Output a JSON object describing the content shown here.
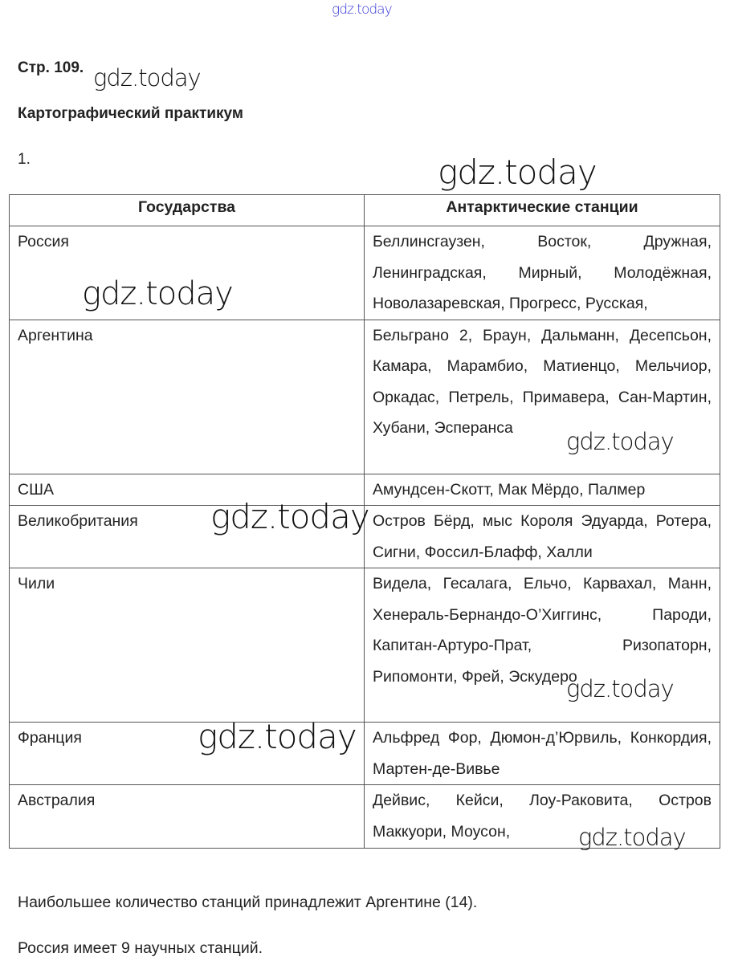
{
  "watermark": "gdz.today",
  "header": {
    "page": "Стр. 109.",
    "title": "Картографический практикум",
    "number": "1."
  },
  "table": {
    "headers": [
      "Государства",
      "Антарктические станции"
    ],
    "rows": [
      {
        "country": "Россия",
        "stations": "Беллинсгаузен, Восток, Дружная, Ленинградская, Мирный, Молодёжная, Новолазаревская, Прогресс, Русская,"
      },
      {
        "country": "Аргентина",
        "stations": "Бельграно 2, Браун, Дальманн, Десепсьон, Камара, Марамбио, Матиенцо, Мельчиор, Оркадас, Петрель, Примавера, Сан-Мартин, Хубани, Эсперанса"
      },
      {
        "country": "США",
        "stations": "Амундсен-Скотт, Мак Мёрдо, Палмер"
      },
      {
        "country": "Великобритания",
        "stations": "Остров Бёрд, мыс Короля Эдуарда, Ротера, Сигни, Фоссил-Блафф, Халли"
      },
      {
        "country": "Чили",
        "stations": "Видела, Гесалага, Ельчо, Карвахал, Манн, Хенераль-Бернандо-О’Хиггинс, Пароди, Капитан-Артуро-Прат, Ризопаторн, Рипомонти, Фрей, Эскудеро"
      },
      {
        "country": "Франция",
        "stations": "Альфред Фор, Дюмон-д’Юрвиль, Конкордия, Мартен-де-Вивье"
      },
      {
        "country": "Австралия",
        "stations": "Дейвис, Кейси, Лоу-Раковита, Остров Маккуори, Моусон,"
      }
    ]
  },
  "conclusions": [
    "Наибольшее количество станций принадлежит  Аргентине (14).",
    "Россия имеет 9 научных станций."
  ]
}
